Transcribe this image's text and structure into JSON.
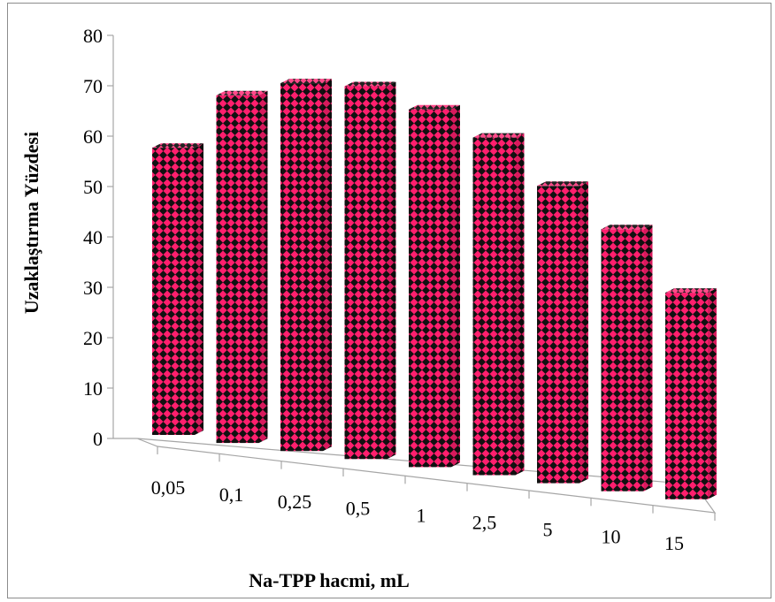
{
  "chart_data": {
    "type": "bar",
    "style": "3d-column",
    "categories": [
      "0,05",
      "0,1",
      "0,25",
      "0,5",
      "1",
      "2,5",
      "5",
      "10",
      "15"
    ],
    "values": [
      57,
      69,
      73,
      74,
      71,
      67,
      59,
      52,
      41
    ],
    "title": "",
    "xlabel": "Na-TPP hacmi, mL",
    "ylabel": "Uzaklaştırma Yüzdesi",
    "ylim": [
      0,
      80
    ],
    "yticks": [
      0,
      10,
      20,
      30,
      40,
      50,
      60,
      70,
      80
    ],
    "grid": false,
    "legend": "none",
    "colors": {
      "bar": "#ff1f6e",
      "pattern": "#111111",
      "axis": "#a6a6a6",
      "frame": "#8c8c8c"
    }
  }
}
